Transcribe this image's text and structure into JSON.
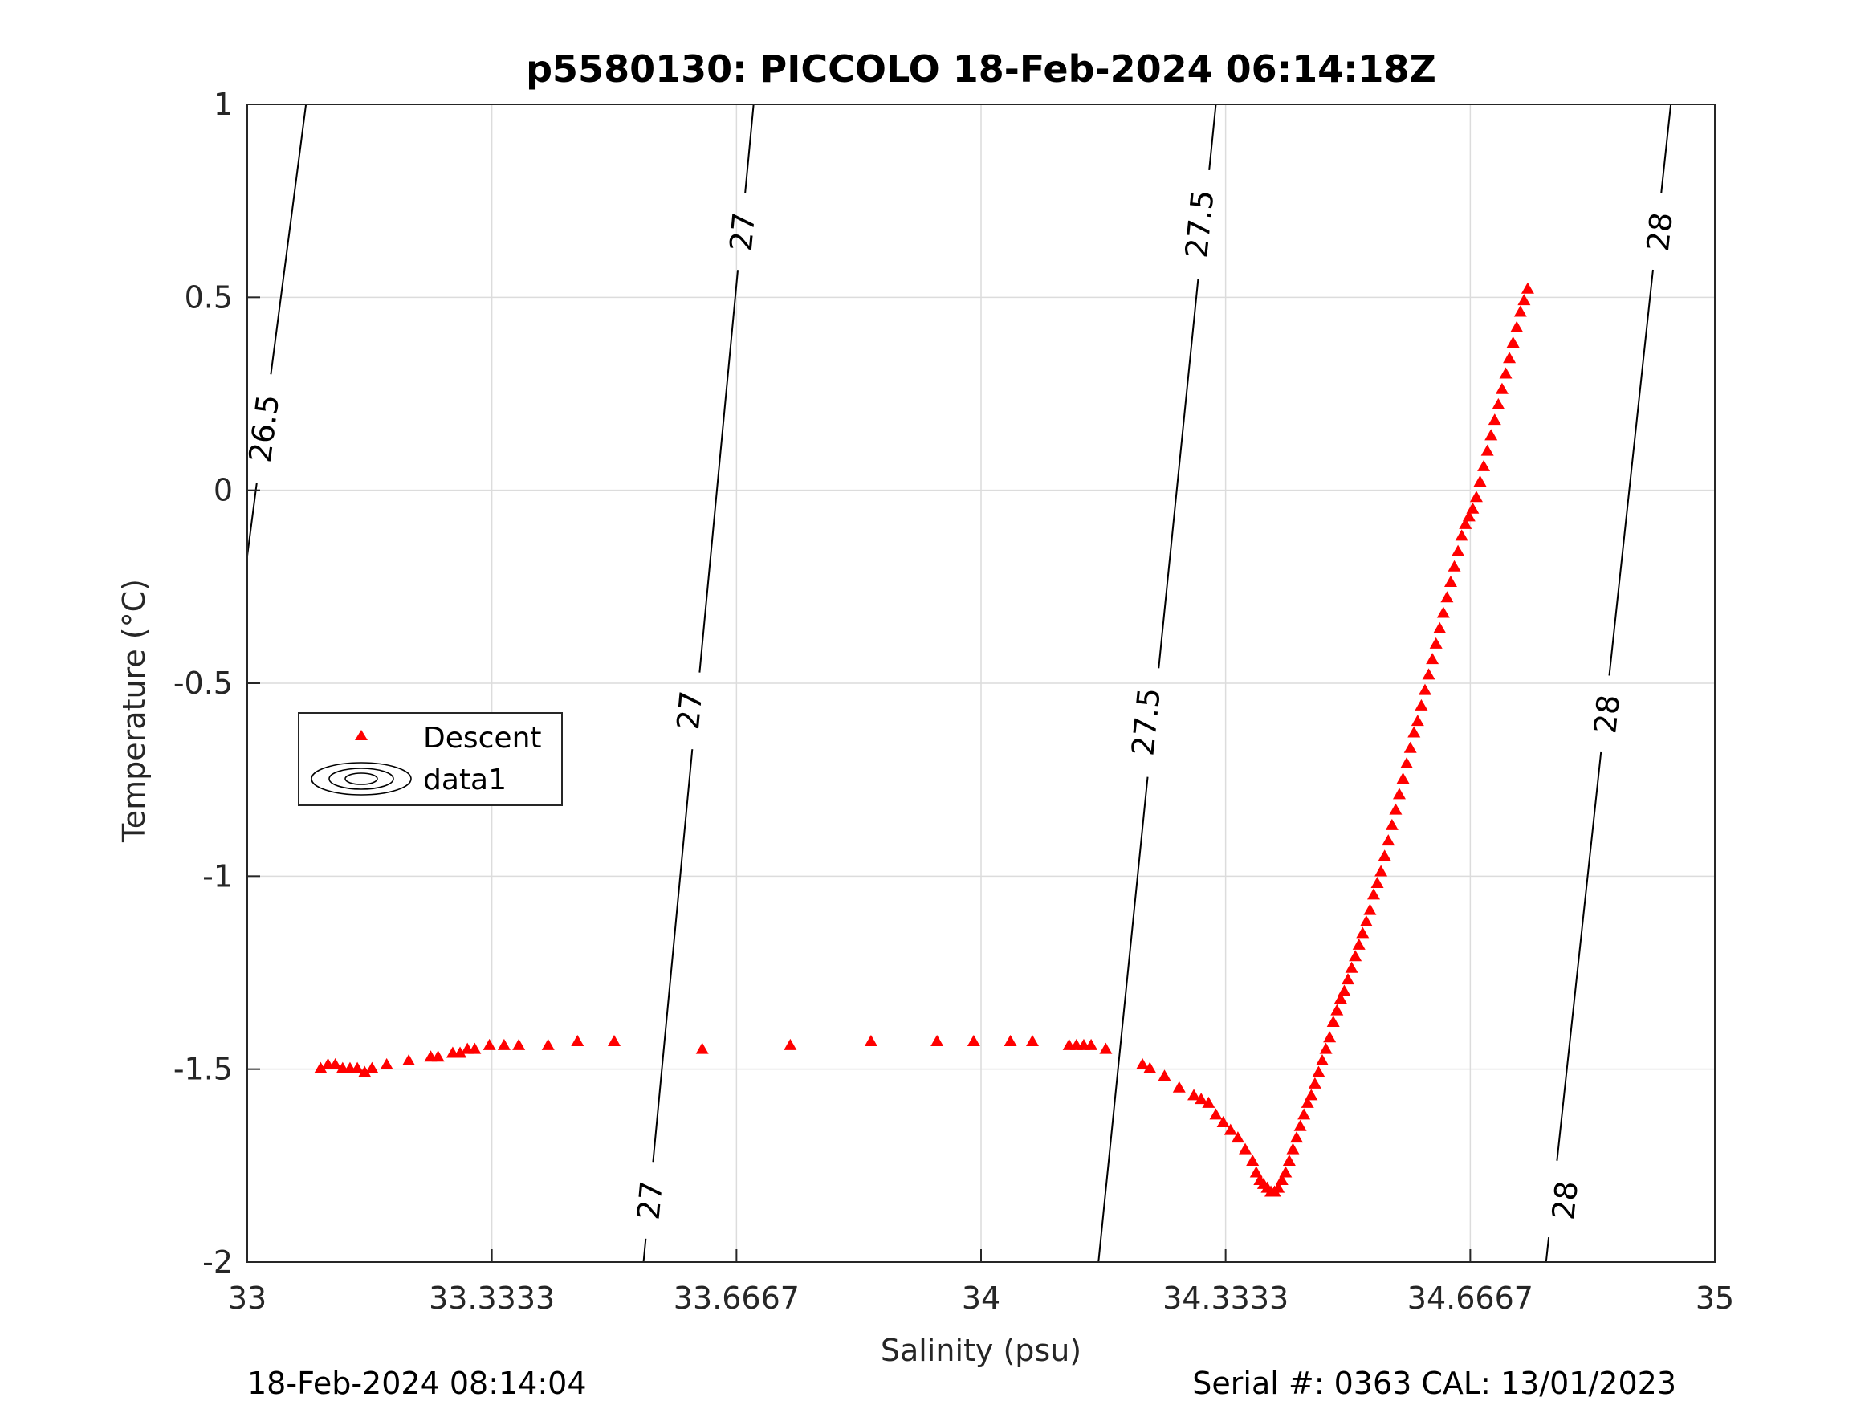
{
  "chart_data": {
    "type": "scatter",
    "title": "p5580130: PICCOLO 18-Feb-2024 06:14:18Z",
    "xlabel": "Salinity (psu)",
    "ylabel": "Temperature (°C)",
    "xlim": [
      33,
      35
    ],
    "ylim": [
      -2,
      1
    ],
    "xticks": [
      33,
      33.3333,
      33.6667,
      34,
      34.3333,
      34.6667,
      35
    ],
    "xtick_labels": [
      "33",
      "33.3333",
      "33.6667",
      "34",
      "34.3333",
      "34.6667",
      "35"
    ],
    "yticks": [
      -2,
      -1.5,
      -1,
      -0.5,
      0,
      0.5,
      1
    ],
    "ytick_labels": [
      "-2",
      "-1.5",
      "-1",
      "-0.5",
      "0",
      "0.5",
      "1"
    ],
    "grid": true,
    "legend": {
      "placement": "middle-left",
      "entries": [
        "Descent",
        "data1"
      ]
    },
    "colors": {
      "descent": "#ff0000",
      "contour": "#000000",
      "grid": "#dcdcdc"
    },
    "series": [
      {
        "name": "Descent",
        "marker": "triangle",
        "points": [
          [
            33.1,
            -1.5
          ],
          [
            33.11,
            -1.49
          ],
          [
            33.12,
            -1.49
          ],
          [
            33.13,
            -1.5
          ],
          [
            33.14,
            -1.5
          ],
          [
            33.15,
            -1.5
          ],
          [
            33.16,
            -1.51
          ],
          [
            33.17,
            -1.5
          ],
          [
            33.19,
            -1.49
          ],
          [
            33.22,
            -1.48
          ],
          [
            33.25,
            -1.47
          ],
          [
            33.26,
            -1.47
          ],
          [
            33.28,
            -1.46
          ],
          [
            33.29,
            -1.46
          ],
          [
            33.3,
            -1.45
          ],
          [
            33.31,
            -1.45
          ],
          [
            33.33,
            -1.44
          ],
          [
            33.35,
            -1.44
          ],
          [
            33.37,
            -1.44
          ],
          [
            33.41,
            -1.44
          ],
          [
            33.45,
            -1.43
          ],
          [
            33.5,
            -1.43
          ],
          [
            33.62,
            -1.45
          ],
          [
            33.74,
            -1.44
          ],
          [
            33.85,
            -1.43
          ],
          [
            33.94,
            -1.43
          ],
          [
            33.99,
            -1.43
          ],
          [
            34.04,
            -1.43
          ],
          [
            34.07,
            -1.43
          ],
          [
            34.12,
            -1.44
          ],
          [
            34.13,
            -1.44
          ],
          [
            34.14,
            -1.44
          ],
          [
            34.15,
            -1.44
          ],
          [
            34.17,
            -1.45
          ],
          [
            34.22,
            -1.49
          ],
          [
            34.23,
            -1.5
          ],
          [
            34.25,
            -1.52
          ],
          [
            34.27,
            -1.55
          ],
          [
            34.29,
            -1.57
          ],
          [
            34.3,
            -1.58
          ],
          [
            34.31,
            -1.59
          ],
          [
            34.32,
            -1.62
          ],
          [
            34.33,
            -1.64
          ],
          [
            34.34,
            -1.66
          ],
          [
            34.35,
            -1.68
          ],
          [
            34.36,
            -1.71
          ],
          [
            34.37,
            -1.74
          ],
          [
            34.375,
            -1.77
          ],
          [
            34.38,
            -1.79
          ],
          [
            34.385,
            -1.8
          ],
          [
            34.39,
            -1.81
          ],
          [
            34.395,
            -1.82
          ],
          [
            34.4,
            -1.82
          ],
          [
            34.405,
            -1.81
          ],
          [
            34.41,
            -1.79
          ],
          [
            34.415,
            -1.77
          ],
          [
            34.42,
            -1.74
          ],
          [
            34.425,
            -1.71
          ],
          [
            34.43,
            -1.68
          ],
          [
            34.435,
            -1.65
          ],
          [
            34.44,
            -1.62
          ],
          [
            34.445,
            -1.59
          ],
          [
            34.45,
            -1.57
          ],
          [
            34.455,
            -1.54
          ],
          [
            34.46,
            -1.51
          ],
          [
            34.465,
            -1.48
          ],
          [
            34.47,
            -1.45
          ],
          [
            34.475,
            -1.42
          ],
          [
            34.48,
            -1.38
          ],
          [
            34.485,
            -1.35
          ],
          [
            34.49,
            -1.32
          ],
          [
            34.495,
            -1.3
          ],
          [
            34.5,
            -1.27
          ],
          [
            34.505,
            -1.24
          ],
          [
            34.51,
            -1.21
          ],
          [
            34.515,
            -1.18
          ],
          [
            34.52,
            -1.15
          ],
          [
            34.525,
            -1.12
          ],
          [
            34.53,
            -1.09
          ],
          [
            34.535,
            -1.05
          ],
          [
            34.54,
            -1.02
          ],
          [
            34.545,
            -0.99
          ],
          [
            34.55,
            -0.95
          ],
          [
            34.555,
            -0.91
          ],
          [
            34.56,
            -0.87
          ],
          [
            34.565,
            -0.83
          ],
          [
            34.57,
            -0.79
          ],
          [
            34.575,
            -0.75
          ],
          [
            34.58,
            -0.71
          ],
          [
            34.585,
            -0.67
          ],
          [
            34.59,
            -0.63
          ],
          [
            34.595,
            -0.6
          ],
          [
            34.6,
            -0.56
          ],
          [
            34.605,
            -0.52
          ],
          [
            34.61,
            -0.48
          ],
          [
            34.615,
            -0.44
          ],
          [
            34.62,
            -0.4
          ],
          [
            34.625,
            -0.36
          ],
          [
            34.63,
            -0.32
          ],
          [
            34.635,
            -0.28
          ],
          [
            34.64,
            -0.24
          ],
          [
            34.645,
            -0.2
          ],
          [
            34.65,
            -0.16
          ],
          [
            34.655,
            -0.12
          ],
          [
            34.66,
            -0.09
          ],
          [
            34.665,
            -0.07
          ],
          [
            34.67,
            -0.05
          ],
          [
            34.675,
            -0.02
          ],
          [
            34.68,
            0.02
          ],
          [
            34.685,
            0.06
          ],
          [
            34.69,
            0.1
          ],
          [
            34.695,
            0.14
          ],
          [
            34.7,
            0.18
          ],
          [
            34.705,
            0.22
          ],
          [
            34.71,
            0.26
          ],
          [
            34.715,
            0.3
          ],
          [
            34.72,
            0.34
          ],
          [
            34.725,
            0.38
          ],
          [
            34.73,
            0.42
          ],
          [
            34.735,
            0.46
          ],
          [
            34.74,
            0.49
          ],
          [
            34.745,
            0.52
          ]
        ]
      }
    ],
    "contours": [
      {
        "level": "26.5",
        "points": [
          [
            33.0,
            -0.17
          ],
          [
            33.08,
            1.0
          ]
        ],
        "labels": [
          {
            "x": 33.023,
            "y": 0.16
          }
        ]
      },
      {
        "level": "27",
        "points": [
          [
            33.54,
            -2.0
          ],
          [
            33.69,
            1.0
          ]
        ],
        "labels": [
          {
            "x": 33.549,
            "y": -1.84
          },
          {
            "x": 33.603,
            "y": -0.57
          },
          {
            "x": 33.675,
            "y": 0.67
          }
        ]
      },
      {
        "level": "27.5",
        "points": [
          [
            34.16,
            -2.0
          ],
          [
            34.32,
            1.0
          ]
        ],
        "labels": [
          {
            "x": 34.225,
            "y": -0.6
          },
          {
            "x": 34.298,
            "y": 0.69
          }
        ]
      },
      {
        "level": "28",
        "points": [
          [
            34.77,
            -2.0
          ],
          [
            34.94,
            1.0
          ]
        ],
        "labels": [
          {
            "x": 34.796,
            "y": -1.84
          },
          {
            "x": 34.853,
            "y": -0.58
          },
          {
            "x": 34.925,
            "y": 0.67
          }
        ]
      }
    ]
  },
  "footer": {
    "left": "18-Feb-2024 08:14:04",
    "right": "Serial #: 0363  CAL: 13/01/2023"
  }
}
